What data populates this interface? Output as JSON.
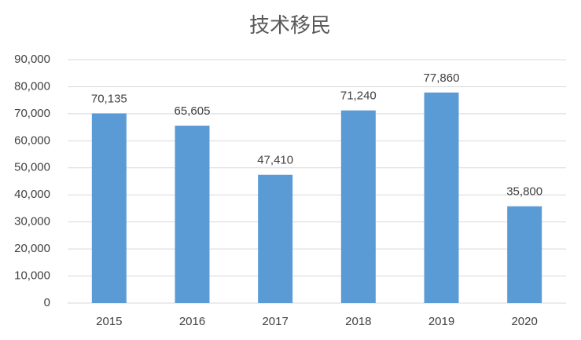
{
  "chart_data": {
    "type": "bar",
    "title": "技术移民",
    "categories": [
      "2015",
      "2016",
      "2017",
      "2018",
      "2019",
      "2020"
    ],
    "values": [
      70135,
      65605,
      47410,
      71240,
      77860,
      35800
    ],
    "value_labels": [
      "70,135",
      "65,605",
      "47,410",
      "71,240",
      "77,860",
      "35,800"
    ],
    "color": "#5b9bd5",
    "ylim": [
      0,
      90000
    ],
    "yticks": [
      0,
      {
        "value": 10000,
        "label": "10,000"
      },
      {
        "value": 20000,
        "label": "20,000"
      },
      {
        "value": 30000,
        "label": "30,000"
      },
      {
        "value": 40000,
        "label": "40,000"
      },
      {
        "value": 50000,
        "label": "50,000"
      },
      {
        "value": 60000,
        "label": "60,000"
      },
      {
        "value": 70000,
        "label": "70,000"
      },
      {
        "value": 80000,
        "label": "80,000"
      },
      {
        "value": 90000,
        "label": "90,000"
      }
    ],
    "grid": true
  }
}
